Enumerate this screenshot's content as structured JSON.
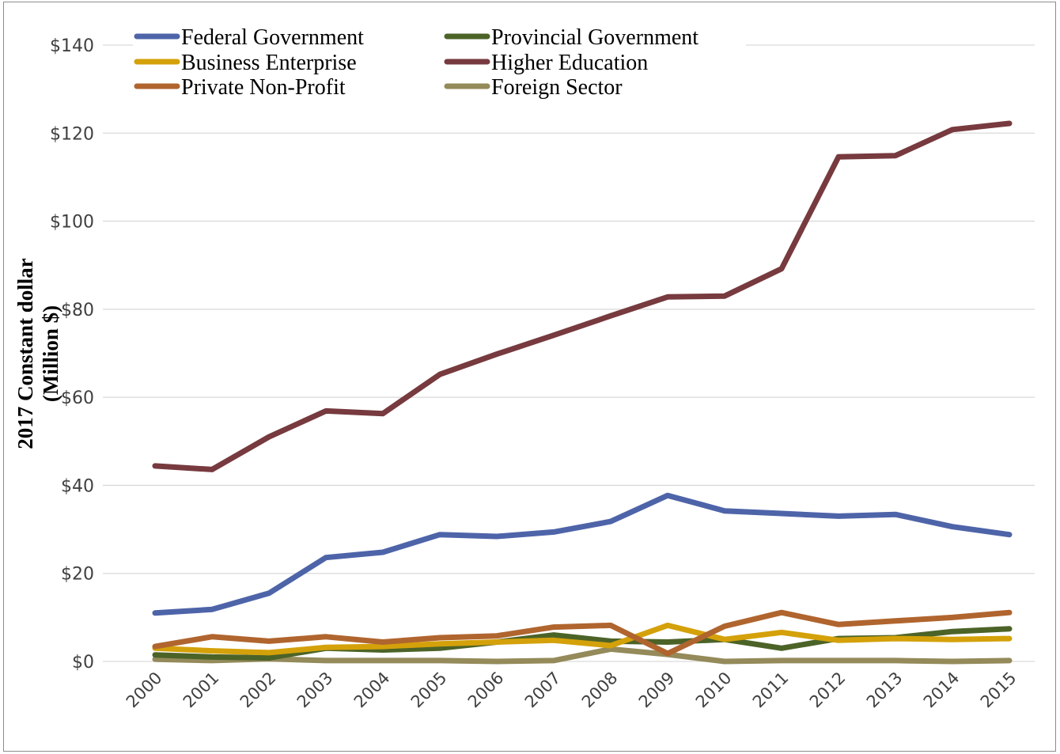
{
  "chart_data": {
    "type": "line",
    "title": "",
    "xlabel": "",
    "ylabel_line1": "2017 Constant dollar",
    "ylabel_line2": "(Million $)",
    "ylim": [
      0,
      140
    ],
    "yticks": [
      0,
      20,
      40,
      60,
      80,
      100,
      120,
      140
    ],
    "ytick_labels": [
      "$0",
      "$20",
      "$40",
      "$60",
      "$80",
      "$100",
      "$120",
      "$140"
    ],
    "categories": [
      "2000",
      "2001",
      "2002",
      "2003",
      "2004",
      "2005",
      "2006",
      "2007",
      "2008",
      "2009",
      "2010",
      "2011",
      "2012",
      "2013",
      "2014",
      "2015"
    ],
    "grid": true,
    "legend_position": "top",
    "series": [
      {
        "name": "Federal Government",
        "color": "#4e64a9",
        "values": [
          11.0,
          11.8,
          15.5,
          23.6,
          24.8,
          28.8,
          28.4,
          29.4,
          31.8,
          37.7,
          34.2,
          33.6,
          33.0,
          33.4,
          30.6,
          28.8
        ]
      },
      {
        "name": "Provincial Government",
        "color": "#4c6328",
        "values": [
          1.5,
          1.0,
          0.8,
          3.0,
          2.6,
          3.0,
          4.4,
          6.0,
          4.6,
          4.4,
          5.0,
          3.0,
          5.2,
          5.4,
          6.8,
          7.4
        ]
      },
      {
        "name": "Business Enterprise",
        "color": "#d4a10a",
        "values": [
          3.0,
          2.4,
          2.0,
          3.2,
          3.4,
          4.0,
          4.4,
          4.8,
          3.6,
          8.2,
          5.0,
          6.6,
          4.8,
          5.2,
          5.0,
          5.2
        ]
      },
      {
        "name": "Higher Education",
        "color": "#773a3e",
        "values": [
          44.4,
          43.6,
          51.0,
          56.9,
          56.3,
          65.2,
          69.8,
          74.1,
          78.5,
          82.8,
          83.0,
          89.2,
          114.6,
          114.9,
          120.8,
          122.2
        ]
      },
      {
        "name": "Private Non-Profit",
        "color": "#b0652e",
        "values": [
          3.4,
          5.6,
          4.6,
          5.6,
          4.4,
          5.4,
          5.8,
          7.8,
          8.2,
          1.8,
          8.0,
          11.1,
          8.4,
          9.2,
          10.0,
          11.1
        ]
      },
      {
        "name": "Foreign Sector",
        "color": "#948a5a",
        "values": [
          0.5,
          0.2,
          0.6,
          0.2,
          0.2,
          0.2,
          0.0,
          0.2,
          2.8,
          1.6,
          0.0,
          0.2,
          0.2,
          0.2,
          0.0,
          0.2
        ]
      }
    ]
  }
}
